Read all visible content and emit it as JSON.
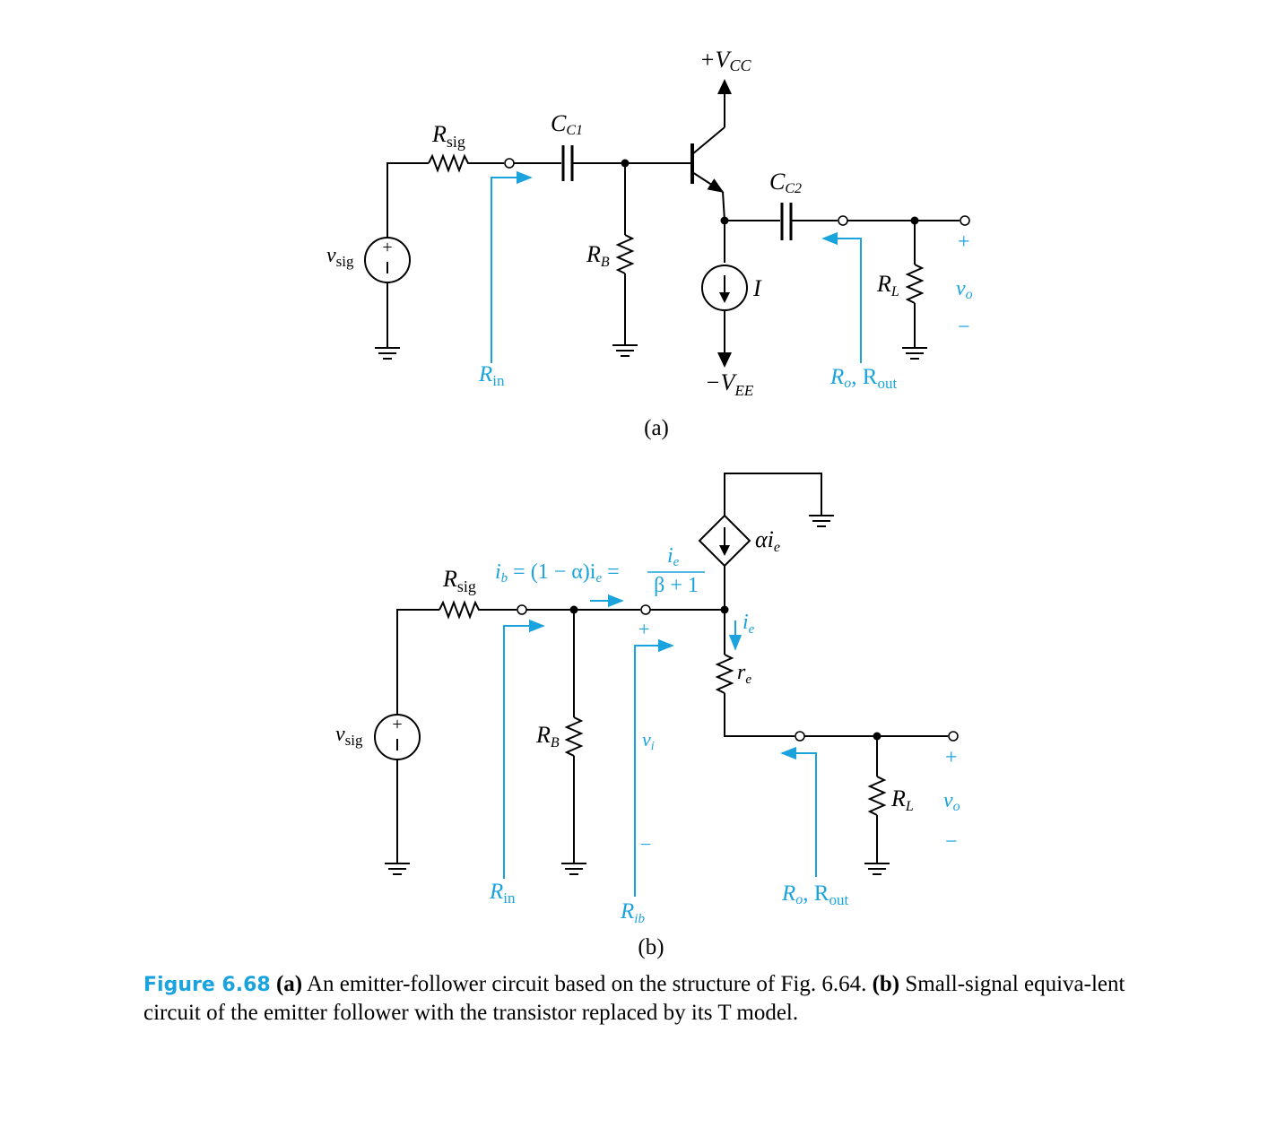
{
  "figure": {
    "label": "Figure 6.68",
    "caption_a_marker": "(a)",
    "caption_a_text": "An emitter-follower circuit based on the structure of Fig. 6.64.",
    "caption_b_marker": "(b)",
    "caption_b_text": "Small-signal equiva-lent circuit of the emitter follower with the transistor replaced by its T model."
  },
  "circuit_a": {
    "sublabel": "(a)",
    "vcc": "+V",
    "vcc_sub": "CC",
    "vee": "−V",
    "vee_sub": "EE",
    "rsig": "R",
    "rsig_sub": "sig",
    "cc1": "C",
    "cc1_sub": "C1",
    "cc2": "C",
    "cc2_sub": "C2",
    "rb": "R",
    "rb_sub": "B",
    "current": "I",
    "rl": "R",
    "rl_sub": "L",
    "vsig": "v",
    "vsig_sub": "sig",
    "rin": "R",
    "rin_sub": "in",
    "ro": "R",
    "ro_sub": "o",
    "rout_sep": ", R",
    "rout_sub": "out",
    "vo": "v",
    "vo_sub": "o",
    "plus": "+",
    "minus": "−"
  },
  "circuit_b": {
    "sublabel": "(b)",
    "alpha_ie": "αi",
    "alpha_ie_sub": "e",
    "ib_eq": "i",
    "ib_sub": "b",
    "ib_eq_rest": " = (1 − α)i",
    "ib_eq_rest_sub": "e",
    "ib_eq_eq": " =",
    "frac_num": "i",
    "frac_num_sub": "e",
    "frac_den": "β + 1",
    "ie": "i",
    "ie_sub": "e",
    "re": "r",
    "re_sub": "e",
    "rsig": "R",
    "rsig_sub": "sig",
    "rb": "R",
    "rb_sub": "B",
    "vi": "v",
    "vi_sub": "i",
    "rl": "R",
    "rl_sub": "L",
    "vsig": "v",
    "vsig_sub": "sig",
    "rin": "R",
    "rin_sub": "in",
    "rib": "R",
    "rib_sub": "ib",
    "ro": "R",
    "ro_sub": "o",
    "rout_sep": ", R",
    "rout_sub": "out",
    "vo": "v",
    "vo_sub": "o",
    "plus": "+",
    "minus": "−"
  },
  "colors": {
    "accent": "#1aa3dd",
    "ink": "#000000"
  }
}
